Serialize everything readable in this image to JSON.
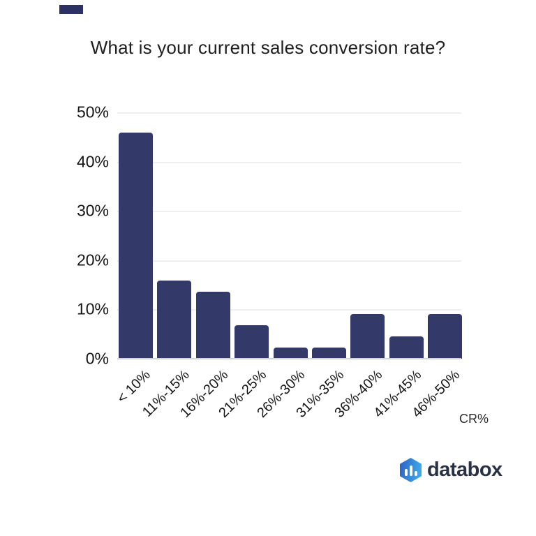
{
  "title": "What is your current sales conversion rate?",
  "chart_data": {
    "type": "bar",
    "title": "What is your current sales conversion rate?",
    "categories": [
      "< 10%",
      "11%-15%",
      "16%-20%",
      "21%-25%",
      "26%-30%",
      "31%-35%",
      "36%-40%",
      "41%-45%",
      "46%-50%"
    ],
    "values": [
      45.9,
      15.9,
      13.6,
      6.8,
      2.3,
      2.3,
      9.1,
      4.5,
      9.1
    ],
    "xlabel": "CR%",
    "ylabel": "",
    "ylim": [
      0,
      50
    ],
    "yticks": [
      "50%",
      "40%",
      "30%",
      "20%",
      "10%",
      "0%"
    ],
    "grid": true,
    "legend": "none",
    "bar_color": "#333a69",
    "gridline_color": "#efefef",
    "axis_line_color": "#d4d4d4"
  },
  "branding": {
    "logo_text": "databox",
    "logo_icon": "hexagon-bar-chart-icon",
    "hex_gradient_start": "#2e5fc4",
    "hex_gradient_end": "#3fb3ec",
    "wordmark_color": "#2b3144"
  }
}
